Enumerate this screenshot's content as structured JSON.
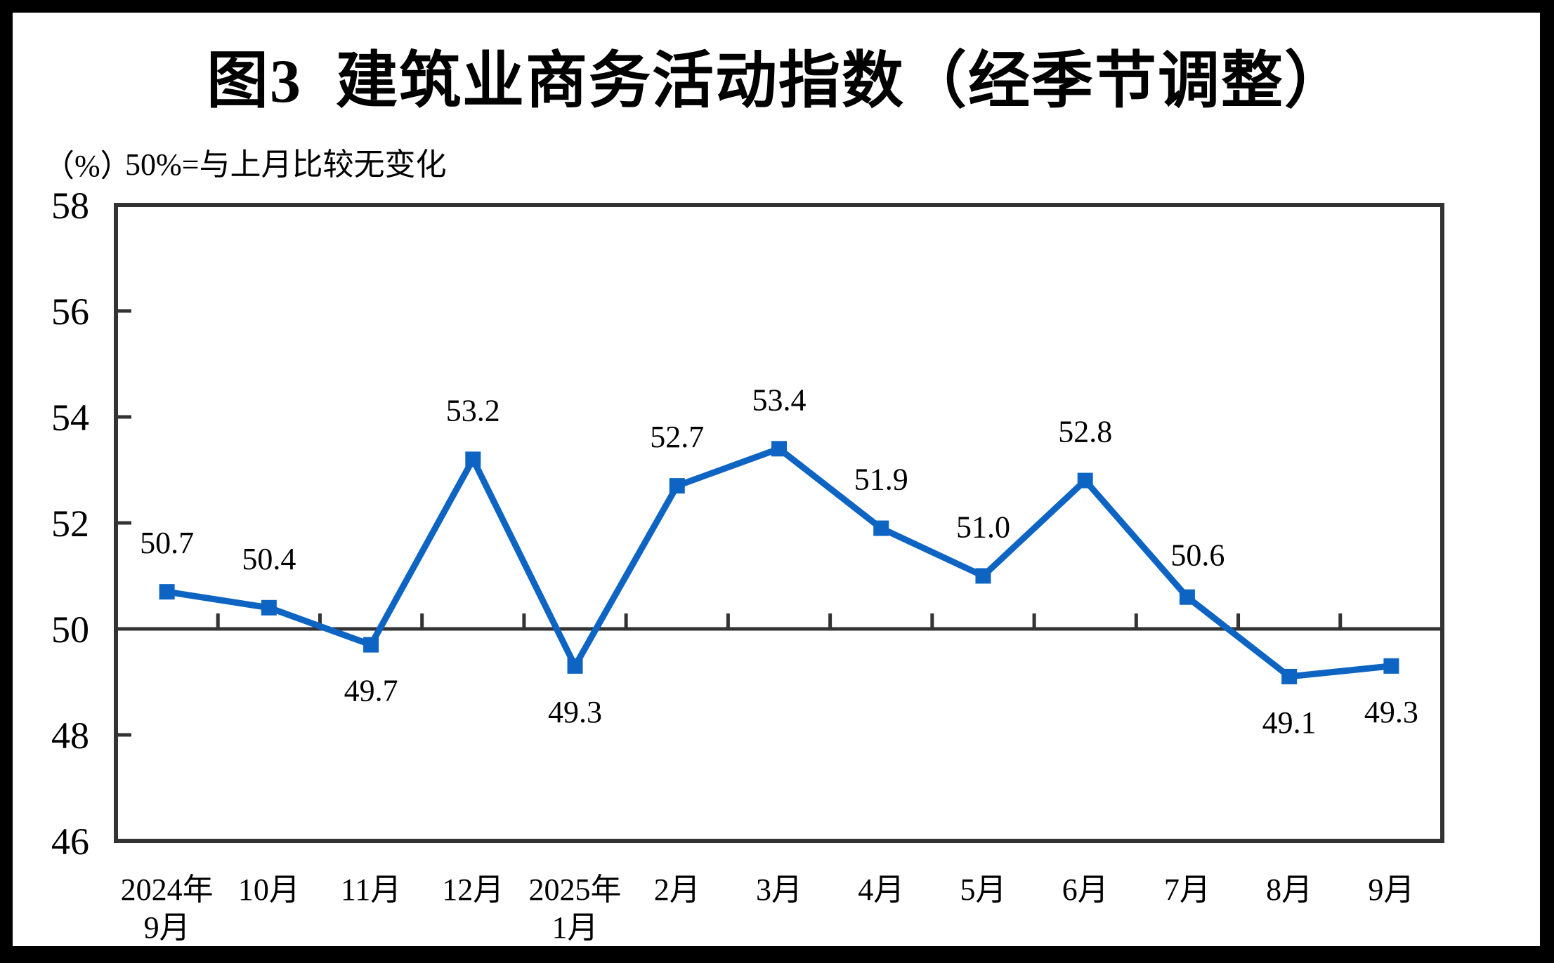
{
  "page": {
    "title": "图3  建筑业商务活动指数（经季节调整）",
    "unit_label": "（%）",
    "subtitle": "50%=与上月比较无变化"
  },
  "colors": {
    "line": "#0D64C2",
    "marker": "#0D64C2",
    "axis": "#333333",
    "reference_line": "#333333",
    "text": "#000000",
    "frame": "#000000",
    "background": "#FFFFFF"
  },
  "chart_data": {
    "type": "line",
    "title": "图3 建筑业商务活动指数（经季节调整）",
    "unit": "%",
    "note": "50%=与上月比较无变化",
    "categories": [
      "2024年9月",
      "10月",
      "11月",
      "12月",
      "2025年1月",
      "2月",
      "3月",
      "4月",
      "5月",
      "6月",
      "7月",
      "8月",
      "9月"
    ],
    "x_tick_label_lines": [
      [
        "2024年",
        "9月"
      ],
      [
        "10月"
      ],
      [
        "11月"
      ],
      [
        "12月"
      ],
      [
        "2025年",
        "1月"
      ],
      [
        "2月"
      ],
      [
        "3月"
      ],
      [
        "4月"
      ],
      [
        "5月"
      ],
      [
        "6月"
      ],
      [
        "7月"
      ],
      [
        "8月"
      ],
      [
        "9月"
      ]
    ],
    "series": [
      {
        "name": "建筑业商务活动指数（经季节调整）",
        "values": [
          50.7,
          50.4,
          49.7,
          53.2,
          49.3,
          52.7,
          53.4,
          51.9,
          51.0,
          52.8,
          50.6,
          49.1,
          49.3
        ]
      }
    ],
    "value_label_decimals": 1,
    "value_label_position": [
      "above",
      "above",
      "below",
      "above",
      "below",
      "above",
      "above",
      "above",
      "above",
      "above",
      "above_near",
      "below",
      "below"
    ],
    "ylim": [
      46,
      58
    ],
    "y_ticks": [
      46,
      48,
      50,
      52,
      54,
      56,
      58
    ],
    "y_inner_tick_values": [
      48,
      52,
      54,
      56
    ],
    "reference_line": 50,
    "grid": false,
    "legend": false,
    "marker": "square"
  }
}
